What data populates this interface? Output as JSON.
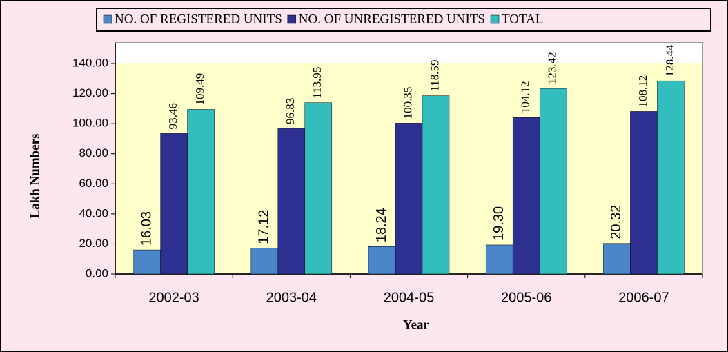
{
  "chart_data": {
    "type": "bar",
    "x_label": "Year",
    "y_label": "Lakh Numbers",
    "categories": [
      "2002-03",
      "2003-04",
      "2004-05",
      "2005-06",
      "2006-07"
    ],
    "series": [
      {
        "name": "NO. OF REGISTERED UNITS",
        "color": "#4a86c8",
        "values": [
          16.03,
          17.12,
          18.24,
          19.3,
          20.32
        ],
        "value_labels": [
          "16.03",
          "17.12",
          "18.24",
          "19.30",
          "20.32"
        ]
      },
      {
        "name": "NO. OF UNREGISTERED UNITS",
        "color": "#2e3192",
        "values": [
          93.46,
          96.83,
          100.35,
          104.12,
          108.12
        ],
        "value_labels": [
          "93.46",
          "96.83",
          "100.35",
          "104.12",
          "108.12"
        ]
      },
      {
        "name": "TOTAL",
        "color": "#33bdbd",
        "values": [
          109.49,
          113.95,
          118.59,
          123.42,
          128.44
        ],
        "value_labels": [
          "109.49",
          "113.95",
          "118.59",
          "123.42",
          "128.44"
        ]
      }
    ],
    "ylim": [
      0,
      140
    ],
    "yticks": [
      {
        "value": 0,
        "label": "0.00"
      },
      {
        "value": 20,
        "label": "20.00"
      },
      {
        "value": 40,
        "label": "40.00"
      },
      {
        "value": 60,
        "label": "60.00"
      },
      {
        "value": 80,
        "label": "80.00"
      },
      {
        "value": 100,
        "label": "100.00"
      },
      {
        "value": 120,
        "label": "120.00"
      },
      {
        "value": 140,
        "label": "140.00"
      }
    ],
    "legend": "top"
  }
}
